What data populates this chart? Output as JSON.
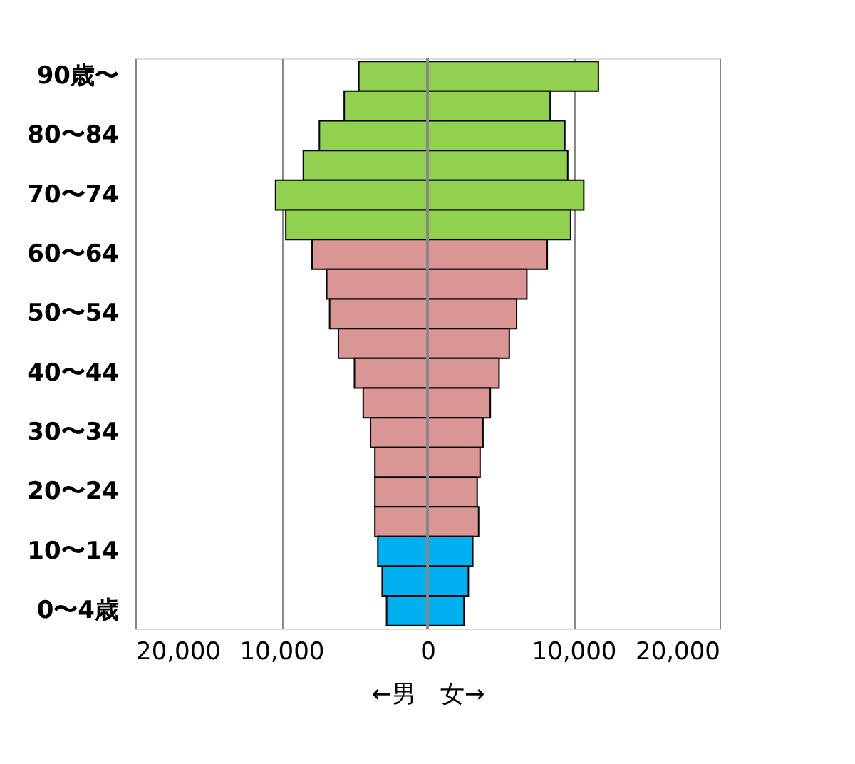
{
  "chart_data": {
    "type": "bar",
    "orientation": "horizontal",
    "stacked": true,
    "categories": [
      "90歳〜",
      null,
      "80〜84",
      null,
      "70〜74",
      null,
      "60〜64",
      null,
      "50〜54",
      null,
      "40〜44",
      null,
      "30〜34",
      null,
      "20〜24",
      null,
      "10〜14",
      null,
      "0〜4歳"
    ],
    "series": [
      {
        "colors": [
          "#92d050",
          "#92d050",
          "#92d050",
          "#92d050",
          "#92d050",
          "#92d050",
          "#da9694",
          "#da9694",
          "#da9694",
          "#da9694",
          "#da9694",
          "#da9694",
          "#da9694",
          "#da9694",
          "#da9694",
          "#da9694",
          "#00b0f0",
          "#00b0f0",
          "#00b0f0"
        ],
        "values": [
          -4700,
          -5700,
          -7400,
          -8500,
          -10400,
          -9700,
          -7900,
          -6900,
          -6700,
          -6100,
          -5000,
          -4400,
          -3900,
          -3600,
          -3600,
          -3600,
          -3400,
          -3100,
          -2800
        ]
      },
      {
        "colors": [
          "#92d050",
          "#92d050",
          "#92d050",
          "#92d050",
          "#92d050",
          "#92d050",
          "#da9694",
          "#da9694",
          "#da9694",
          "#da9694",
          "#da9694",
          "#da9694",
          "#da9694",
          "#da9694",
          "#da9694",
          "#da9694",
          "#00b0f0",
          "#00b0f0",
          "#00b0f0"
        ],
        "values": [
          11700,
          8400,
          9400,
          9600,
          10700,
          9800,
          8200,
          6800,
          6100,
          5600,
          4900,
          4300,
          3800,
          3600,
          3400,
          3500,
          3100,
          2800,
          2500
        ]
      }
    ],
    "xlim": [
      -20000,
      20000
    ],
    "xticks": [
      {
        "value": -20000,
        "label": "20,000"
      },
      {
        "value": -10000,
        "label": "10,000"
      },
      0,
      {
        "value": 10000,
        "label": "10,000"
      },
      {
        "value": 20000,
        "label": "20,000"
      }
    ],
    "xlabel": "←男　女→",
    "grid": "x"
  }
}
